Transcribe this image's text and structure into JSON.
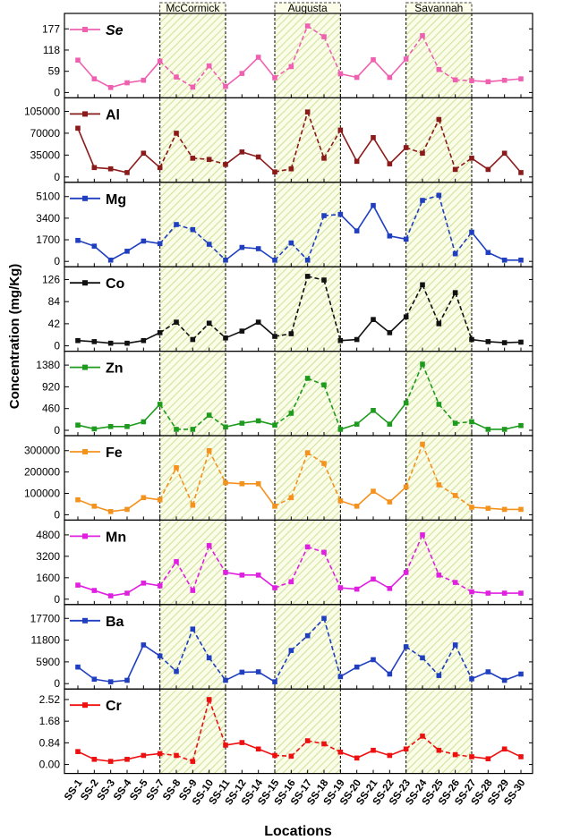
{
  "chart_data": {
    "type": "line",
    "xlabel": "Locations",
    "ylabel": "Concentration (mg/Kg)",
    "categories": [
      "SS-1",
      "SS-2",
      "SS-3",
      "SS-4",
      "SS-5",
      "SS-7",
      "SS-8",
      "SS-9",
      "SS-10",
      "SS-11",
      "SS-12",
      "SS-14",
      "SS-15",
      "SS-16",
      "SS-17",
      "SS-18",
      "SS-19",
      "SS-20",
      "SS-21",
      "SS-22",
      "SS-23",
      "SS-24",
      "SS-25",
      "SS-26",
      "SS-27",
      "SS-28",
      "SS-29",
      "SS-30"
    ],
    "regions": [
      {
        "label": "McCormick",
        "from": "SS-7",
        "to": "SS-11"
      },
      {
        "label": "Augusta",
        "from": "SS-15",
        "to": "SS-19"
      },
      {
        "label": "Savannah",
        "from": "SS-23",
        "to": "SS-27"
      }
    ],
    "series": [
      {
        "name": "Se",
        "italic": true,
        "color": "#f060b0",
        "ylim": [
          0,
          205
        ],
        "ticks": [
          "177",
          "118",
          "59",
          "0"
        ],
        "tick_values": [
          177,
          118,
          59,
          0
        ],
        "values": [
          90,
          38,
          14,
          27,
          34,
          87,
          43,
          15,
          74,
          17,
          53,
          98,
          41,
          72,
          185,
          155,
          52,
          42,
          91,
          42,
          93,
          158,
          64,
          35,
          33,
          30,
          34,
          38
        ]
      },
      {
        "name": "Al",
        "italic": false,
        "color": "#8b1a1a",
        "ylim": [
          0,
          118000
        ],
        "ticks": [
          "105000",
          "70000",
          "35000",
          "0"
        ],
        "tick_values": [
          105000,
          70000,
          35000,
          0
        ],
        "values": [
          78000,
          15000,
          13000,
          7000,
          38000,
          15000,
          70000,
          30000,
          28000,
          20000,
          40000,
          32000,
          8000,
          13000,
          104000,
          30000,
          75000,
          25000,
          63000,
          21000,
          47000,
          38000,
          92000,
          12000,
          30000,
          12000,
          38000,
          7000
        ]
      },
      {
        "name": "Mg",
        "italic": false,
        "color": "#1f3fc0",
        "ylim": [
          0,
          5800
        ],
        "ticks": [
          "5100",
          "3400",
          "1700",
          "0"
        ],
        "tick_values": [
          5100,
          3400,
          1700,
          0
        ],
        "values": [
          1650,
          1200,
          100,
          800,
          1600,
          1400,
          2900,
          2500,
          1350,
          100,
          1100,
          1000,
          100,
          1450,
          100,
          3600,
          3700,
          2400,
          4400,
          2000,
          1750,
          4800,
          5200,
          600,
          2300,
          700,
          100,
          100
        ]
      },
      {
        "name": "Co",
        "italic": false,
        "color": "#111111",
        "ylim": [
          0,
          140
        ],
        "ticks": [
          "126",
          "84",
          "42",
          "0"
        ],
        "tick_values": [
          126,
          84,
          42,
          0
        ],
        "values": [
          10,
          8,
          5,
          5,
          10,
          25,
          45,
          12,
          43,
          15,
          28,
          45,
          18,
          23,
          132,
          125,
          10,
          12,
          50,
          25,
          55,
          116,
          42,
          101,
          12,
          8,
          6,
          7
        ]
      },
      {
        "name": "Zn",
        "italic": false,
        "color": "#1e9a1e",
        "ylim": [
          0,
          1560
        ],
        "ticks": [
          "1380",
          "920",
          "460",
          "0"
        ],
        "tick_values": [
          1380,
          920,
          460,
          0
        ],
        "values": [
          110,
          30,
          80,
          80,
          180,
          550,
          20,
          20,
          320,
          70,
          150,
          200,
          110,
          360,
          1100,
          960,
          20,
          130,
          420,
          130,
          580,
          1400,
          550,
          150,
          180,
          20,
          20,
          100
        ]
      },
      {
        "name": "Fe",
        "italic": false,
        "color": "#f5921e",
        "ylim": [
          0,
          345000
        ],
        "ticks": [
          "300000",
          "200000",
          "100000",
          "0"
        ],
        "tick_values": [
          300000,
          200000,
          100000,
          0
        ],
        "values": [
          70000,
          40000,
          15000,
          25000,
          80000,
          70000,
          220000,
          45000,
          300000,
          150000,
          145000,
          145000,
          40000,
          80000,
          290000,
          240000,
          65000,
          40000,
          110000,
          60000,
          130000,
          330000,
          140000,
          90000,
          35000,
          30000,
          25000,
          25000
        ]
      },
      {
        "name": "Mn",
        "italic": false,
        "color": "#e020e0",
        "ylim": [
          0,
          5500
        ],
        "ticks": [
          "4800",
          "3200",
          "1600",
          "0"
        ],
        "tick_values": [
          4800,
          3200,
          1600,
          0
        ],
        "values": [
          1050,
          650,
          250,
          450,
          1200,
          1000,
          2800,
          650,
          4000,
          2000,
          1800,
          1800,
          850,
          1300,
          3900,
          3500,
          850,
          750,
          1500,
          800,
          2000,
          4800,
          1800,
          1250,
          550,
          450,
          450,
          450
        ]
      },
      {
        "name": "Ba",
        "italic": false,
        "color": "#1f3fc0",
        "ylim": [
          0,
          20000
        ],
        "ticks": [
          "17700",
          "11800",
          "5900",
          "0"
        ],
        "tick_values": [
          17700,
          11800,
          5900,
          0
        ],
        "values": [
          4500,
          1200,
          500,
          900,
          10500,
          7500,
          3300,
          14800,
          7000,
          900,
          3100,
          3200,
          500,
          9000,
          13000,
          17700,
          1900,
          4500,
          6500,
          2600,
          10000,
          7000,
          2200,
          10500,
          1300,
          3200,
          900,
          2600
        ]
      },
      {
        "name": "Cr",
        "italic": false,
        "color": "#ee1010",
        "ylim": [
          -0.14,
          2.72
        ],
        "ticks": [
          "2.52",
          "1.68",
          "0.84",
          "0.00"
        ],
        "tick_values": [
          2.52,
          1.68,
          0.84,
          0.0
        ],
        "values": [
          0.5,
          0.2,
          0.12,
          0.2,
          0.35,
          0.42,
          0.35,
          0.12,
          2.52,
          0.75,
          0.85,
          0.6,
          0.35,
          0.32,
          0.92,
          0.8,
          0.48,
          0.25,
          0.55,
          0.35,
          0.6,
          1.1,
          0.55,
          0.38,
          0.3,
          0.22,
          0.6,
          0.3
        ]
      }
    ]
  }
}
